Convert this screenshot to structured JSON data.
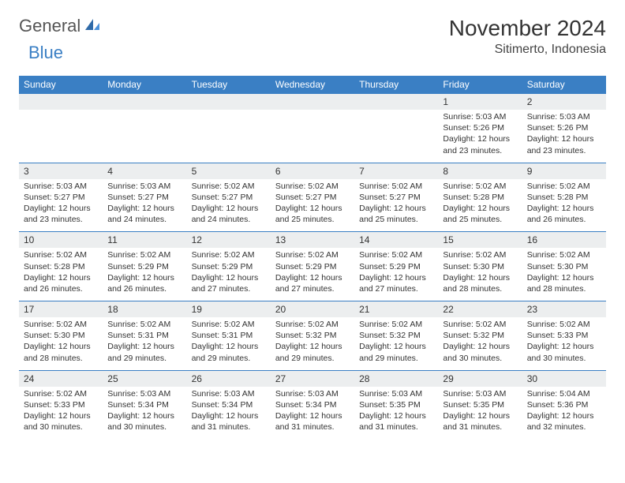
{
  "logo": {
    "text1": "General",
    "text2": "Blue"
  },
  "title": "November 2024",
  "location": "Sitimerto, Indonesia",
  "colors": {
    "header_bg": "#3a7fc4",
    "header_text": "#ffffff",
    "daynum_bg": "#eceeef",
    "row_border": "#3a7fc4",
    "body_text": "#333333",
    "logo_gray": "#555555",
    "logo_blue": "#3a7fc4",
    "background": "#ffffff"
  },
  "fonts": {
    "title_pt": 28,
    "location_pt": 16,
    "header_pt": 12,
    "cell_pt": 10.5,
    "logo_pt": 22
  },
  "day_names": [
    "Sunday",
    "Monday",
    "Tuesday",
    "Wednesday",
    "Thursday",
    "Friday",
    "Saturday"
  ],
  "weeks": [
    [
      {
        "num": "",
        "sunrise": "",
        "sunset": "",
        "daylight": ""
      },
      {
        "num": "",
        "sunrise": "",
        "sunset": "",
        "daylight": ""
      },
      {
        "num": "",
        "sunrise": "",
        "sunset": "",
        "daylight": ""
      },
      {
        "num": "",
        "sunrise": "",
        "sunset": "",
        "daylight": ""
      },
      {
        "num": "",
        "sunrise": "",
        "sunset": "",
        "daylight": ""
      },
      {
        "num": "1",
        "sunrise": "Sunrise: 5:03 AM",
        "sunset": "Sunset: 5:26 PM",
        "daylight": "Daylight: 12 hours and 23 minutes."
      },
      {
        "num": "2",
        "sunrise": "Sunrise: 5:03 AM",
        "sunset": "Sunset: 5:26 PM",
        "daylight": "Daylight: 12 hours and 23 minutes."
      }
    ],
    [
      {
        "num": "3",
        "sunrise": "Sunrise: 5:03 AM",
        "sunset": "Sunset: 5:27 PM",
        "daylight": "Daylight: 12 hours and 23 minutes."
      },
      {
        "num": "4",
        "sunrise": "Sunrise: 5:03 AM",
        "sunset": "Sunset: 5:27 PM",
        "daylight": "Daylight: 12 hours and 24 minutes."
      },
      {
        "num": "5",
        "sunrise": "Sunrise: 5:02 AM",
        "sunset": "Sunset: 5:27 PM",
        "daylight": "Daylight: 12 hours and 24 minutes."
      },
      {
        "num": "6",
        "sunrise": "Sunrise: 5:02 AM",
        "sunset": "Sunset: 5:27 PM",
        "daylight": "Daylight: 12 hours and 25 minutes."
      },
      {
        "num": "7",
        "sunrise": "Sunrise: 5:02 AM",
        "sunset": "Sunset: 5:27 PM",
        "daylight": "Daylight: 12 hours and 25 minutes."
      },
      {
        "num": "8",
        "sunrise": "Sunrise: 5:02 AM",
        "sunset": "Sunset: 5:28 PM",
        "daylight": "Daylight: 12 hours and 25 minutes."
      },
      {
        "num": "9",
        "sunrise": "Sunrise: 5:02 AM",
        "sunset": "Sunset: 5:28 PM",
        "daylight": "Daylight: 12 hours and 26 minutes."
      }
    ],
    [
      {
        "num": "10",
        "sunrise": "Sunrise: 5:02 AM",
        "sunset": "Sunset: 5:28 PM",
        "daylight": "Daylight: 12 hours and 26 minutes."
      },
      {
        "num": "11",
        "sunrise": "Sunrise: 5:02 AM",
        "sunset": "Sunset: 5:29 PM",
        "daylight": "Daylight: 12 hours and 26 minutes."
      },
      {
        "num": "12",
        "sunrise": "Sunrise: 5:02 AM",
        "sunset": "Sunset: 5:29 PM",
        "daylight": "Daylight: 12 hours and 27 minutes."
      },
      {
        "num": "13",
        "sunrise": "Sunrise: 5:02 AM",
        "sunset": "Sunset: 5:29 PM",
        "daylight": "Daylight: 12 hours and 27 minutes."
      },
      {
        "num": "14",
        "sunrise": "Sunrise: 5:02 AM",
        "sunset": "Sunset: 5:29 PM",
        "daylight": "Daylight: 12 hours and 27 minutes."
      },
      {
        "num": "15",
        "sunrise": "Sunrise: 5:02 AM",
        "sunset": "Sunset: 5:30 PM",
        "daylight": "Daylight: 12 hours and 28 minutes."
      },
      {
        "num": "16",
        "sunrise": "Sunrise: 5:02 AM",
        "sunset": "Sunset: 5:30 PM",
        "daylight": "Daylight: 12 hours and 28 minutes."
      }
    ],
    [
      {
        "num": "17",
        "sunrise": "Sunrise: 5:02 AM",
        "sunset": "Sunset: 5:30 PM",
        "daylight": "Daylight: 12 hours and 28 minutes."
      },
      {
        "num": "18",
        "sunrise": "Sunrise: 5:02 AM",
        "sunset": "Sunset: 5:31 PM",
        "daylight": "Daylight: 12 hours and 29 minutes."
      },
      {
        "num": "19",
        "sunrise": "Sunrise: 5:02 AM",
        "sunset": "Sunset: 5:31 PM",
        "daylight": "Daylight: 12 hours and 29 minutes."
      },
      {
        "num": "20",
        "sunrise": "Sunrise: 5:02 AM",
        "sunset": "Sunset: 5:32 PM",
        "daylight": "Daylight: 12 hours and 29 minutes."
      },
      {
        "num": "21",
        "sunrise": "Sunrise: 5:02 AM",
        "sunset": "Sunset: 5:32 PM",
        "daylight": "Daylight: 12 hours and 29 minutes."
      },
      {
        "num": "22",
        "sunrise": "Sunrise: 5:02 AM",
        "sunset": "Sunset: 5:32 PM",
        "daylight": "Daylight: 12 hours and 30 minutes."
      },
      {
        "num": "23",
        "sunrise": "Sunrise: 5:02 AM",
        "sunset": "Sunset: 5:33 PM",
        "daylight": "Daylight: 12 hours and 30 minutes."
      }
    ],
    [
      {
        "num": "24",
        "sunrise": "Sunrise: 5:02 AM",
        "sunset": "Sunset: 5:33 PM",
        "daylight": "Daylight: 12 hours and 30 minutes."
      },
      {
        "num": "25",
        "sunrise": "Sunrise: 5:03 AM",
        "sunset": "Sunset: 5:34 PM",
        "daylight": "Daylight: 12 hours and 30 minutes."
      },
      {
        "num": "26",
        "sunrise": "Sunrise: 5:03 AM",
        "sunset": "Sunset: 5:34 PM",
        "daylight": "Daylight: 12 hours and 31 minutes."
      },
      {
        "num": "27",
        "sunrise": "Sunrise: 5:03 AM",
        "sunset": "Sunset: 5:34 PM",
        "daylight": "Daylight: 12 hours and 31 minutes."
      },
      {
        "num": "28",
        "sunrise": "Sunrise: 5:03 AM",
        "sunset": "Sunset: 5:35 PM",
        "daylight": "Daylight: 12 hours and 31 minutes."
      },
      {
        "num": "29",
        "sunrise": "Sunrise: 5:03 AM",
        "sunset": "Sunset: 5:35 PM",
        "daylight": "Daylight: 12 hours and 31 minutes."
      },
      {
        "num": "30",
        "sunrise": "Sunrise: 5:04 AM",
        "sunset": "Sunset: 5:36 PM",
        "daylight": "Daylight: 12 hours and 32 minutes."
      }
    ]
  ]
}
